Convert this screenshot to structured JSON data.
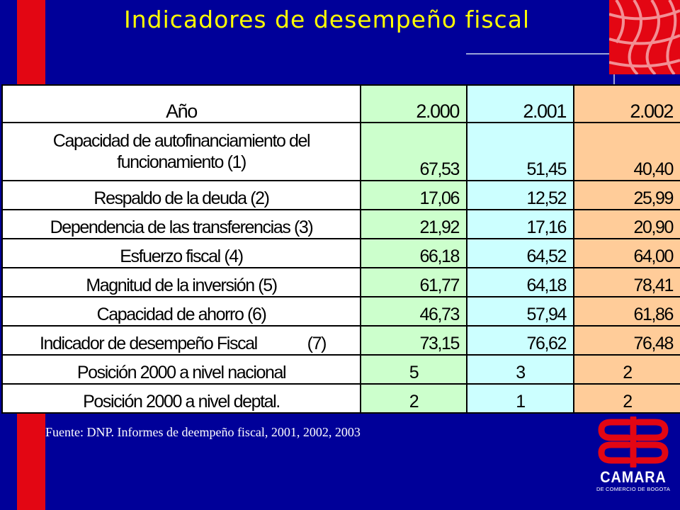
{
  "slide": {
    "title": "Indicadores de desempeño fiscal",
    "source": "Fuente: DNP. Informes de deempeño fiscal, 2001, 2002, 2003",
    "colors": {
      "background": "#000099",
      "accent_red": "#e30613",
      "title": "#ffff00",
      "col_2000": "#ccffcc",
      "col_2001": "#ccffff",
      "col_2002": "#ffcc99"
    }
  },
  "table": {
    "header_label": "Año",
    "years": [
      "2.000",
      "2.001",
      "2.002"
    ],
    "rows": [
      {
        "label": "Capacidad de autofinanciamiento del funcionamiento (1)",
        "line1": "Capacidad de autofinanciamiento del",
        "line2": "funcionamiento (1)",
        "v2000": "67,53",
        "v2001": "51,45",
        "v2002": "40,40"
      },
      {
        "label": "Respaldo de la deuda (2)",
        "v2000": "17,06",
        "v2001": "12,52",
        "v2002": "25,99"
      },
      {
        "label": "Dependencia de las transferencias (3)",
        "v2000": "21,92",
        "v2001": "17,16",
        "v2002": "20,90"
      },
      {
        "label": "Esfuerzo fiscal (4)",
        "v2000": "66,18",
        "v2001": "64,52",
        "v2002": "64,00"
      },
      {
        "label": "Magnitud de la inversión (5)",
        "v2000": "61,77",
        "v2001": "64,18",
        "v2002": "78,41"
      },
      {
        "label": "Capacidad de ahorro (6)",
        "v2000": "46,73",
        "v2001": "57,94",
        "v2002": "61,86"
      },
      {
        "label": "Indicador de desempeño Fiscal",
        "note": "(7)",
        "v2000": "73,15",
        "v2001": "76,62",
        "v2002": "76,48"
      },
      {
        "label": "Posición 2000 a nivel nacional",
        "v2000": "5",
        "v2001": "3",
        "v2002": "2"
      },
      {
        "label": "Posición 2000 a nivel deptal.",
        "v2000": "2",
        "v2001": "1",
        "v2002": "2"
      }
    ]
  },
  "logo": {
    "name": "CAMARA",
    "subtitle": "DE COMERCIO DE BOGOTA"
  }
}
